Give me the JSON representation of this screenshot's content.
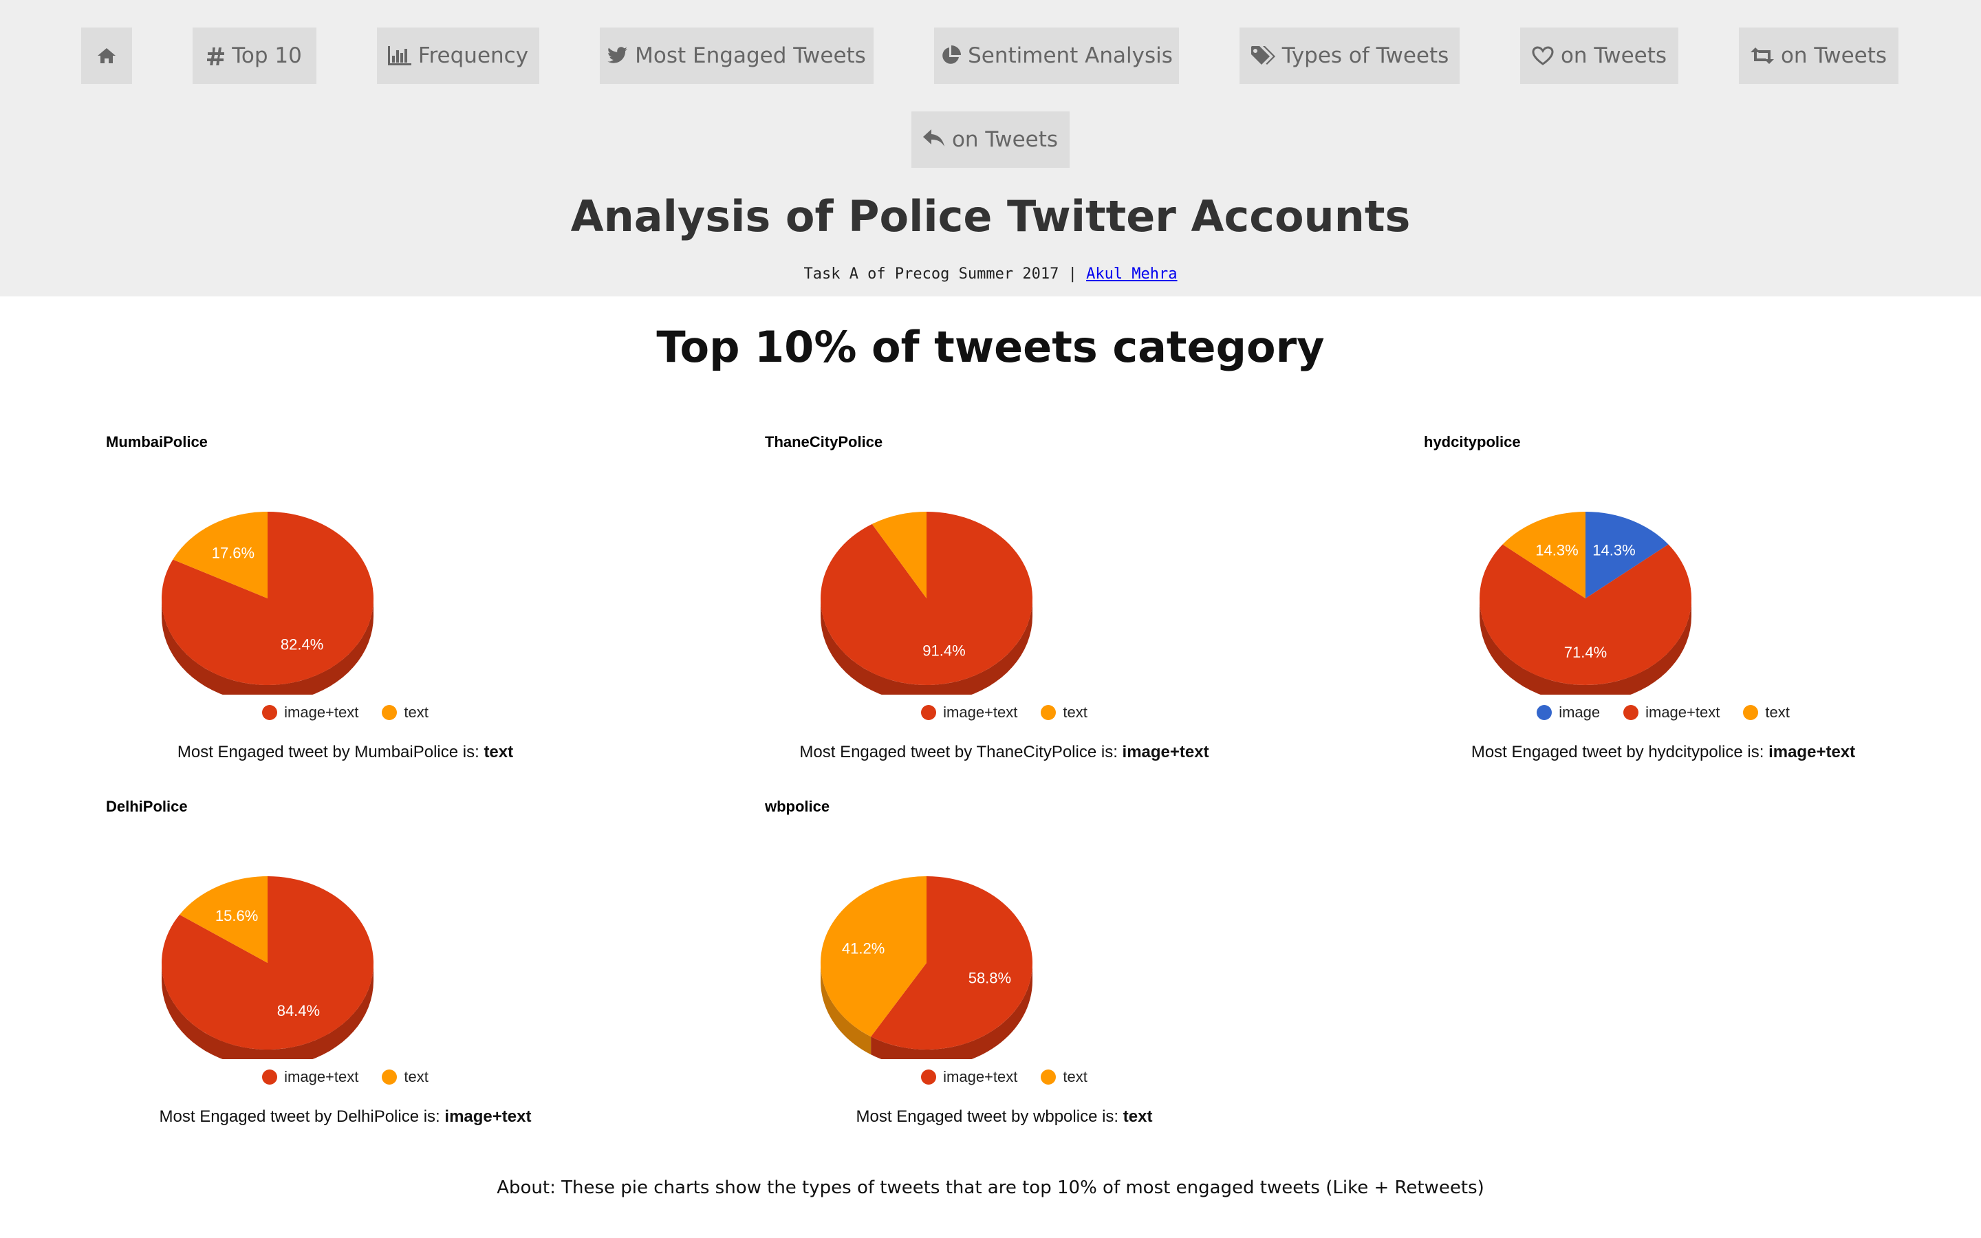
{
  "nav": {
    "home": {
      "icon": "home-icon"
    },
    "top10": {
      "label": "Top 10",
      "icon": "hashtag-icon"
    },
    "frequency": {
      "label": "Frequency",
      "icon": "bar-chart-icon"
    },
    "engaged": {
      "label": "Most Engaged Tweets",
      "icon": "twitter-bird-icon"
    },
    "sentiment": {
      "label": "Sentiment Analysis",
      "icon": "pie-chart-icon"
    },
    "types": {
      "label": "Types of Tweets",
      "icon": "tags-icon"
    },
    "likes": {
      "label": "on Tweets",
      "icon": "heart-icon"
    },
    "retweets": {
      "label": "on Tweets",
      "icon": "retweet-icon"
    },
    "replies": {
      "label": "on Tweets",
      "icon": "reply-icon"
    }
  },
  "header": {
    "title": "Analysis of Police Twitter Accounts",
    "subtitle": "Task A of Precog Summer 2017 |",
    "author": "Akul Mehra"
  },
  "section_title": "Top 10% of tweets category",
  "colors": {
    "image": "#3366cc",
    "image+text": "#dc3912",
    "text": "#ff9900"
  },
  "chart_data": [
    {
      "type": "pie",
      "title": "MumbaiPolice",
      "categories": [
        "image+text",
        "text"
      ],
      "values": [
        82.4,
        17.6
      ],
      "labels": [
        "82.4%",
        "17.6%"
      ],
      "legend": [
        "image+text",
        "text"
      ],
      "caption_prefix": "Most Engaged tweet by MumbaiPolice is:",
      "caption_value": "text"
    },
    {
      "type": "pie",
      "title": "ThaneCityPolice",
      "categories": [
        "image+text",
        "text"
      ],
      "values": [
        91.4,
        8.6
      ],
      "labels": [
        "91.4%",
        ""
      ],
      "legend": [
        "image+text",
        "text"
      ],
      "caption_prefix": "Most Engaged tweet by ThaneCityPolice is:",
      "caption_value": "image+text"
    },
    {
      "type": "pie",
      "title": "hydcitypolice",
      "categories": [
        "image",
        "image+text",
        "text"
      ],
      "values": [
        14.3,
        71.4,
        14.3
      ],
      "labels": [
        "14.3%",
        "71.4%",
        "14.3%"
      ],
      "legend": [
        "image",
        "image+text",
        "text"
      ],
      "caption_prefix": "Most Engaged tweet by hydcitypolice is:",
      "caption_value": "image+text"
    },
    {
      "type": "pie",
      "title": "DelhiPolice",
      "categories": [
        "image+text",
        "text"
      ],
      "values": [
        84.4,
        15.6
      ],
      "labels": [
        "84.4%",
        "15.6%"
      ],
      "legend": [
        "image+text",
        "text"
      ],
      "caption_prefix": "Most Engaged tweet by DelhiPolice is:",
      "caption_value": "image+text"
    },
    {
      "type": "pie",
      "title": "wbpolice",
      "categories": [
        "image+text",
        "text"
      ],
      "values": [
        58.8,
        41.2
      ],
      "labels": [
        "58.8%",
        "41.2%"
      ],
      "legend": [
        "image+text",
        "text"
      ],
      "caption_prefix": "Most Engaged tweet by wbpolice is:",
      "caption_value": "text"
    }
  ],
  "about": "About: These pie charts show the types of tweets that are top 10% of most engaged tweets (Like + Retweets)"
}
